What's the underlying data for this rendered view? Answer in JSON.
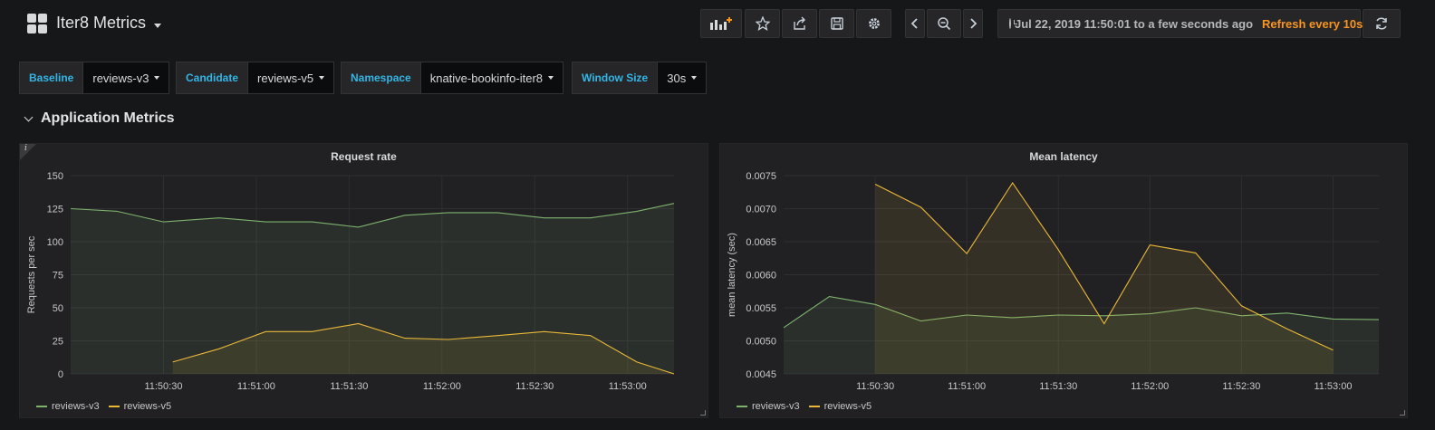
{
  "header": {
    "title": "Iter8 Metrics",
    "time_range": "Jul 22, 2019 11:50:01 to a few seconds ago",
    "refresh": "Refresh every 10s",
    "buttons": [
      "add-panel-icon",
      "star-icon",
      "share-icon",
      "save-icon",
      "settings-icon",
      "chevron-left-icon",
      "zoom-out-icon",
      "chevron-right-icon",
      "refresh-icon"
    ]
  },
  "variables": [
    {
      "label": "Baseline",
      "value": "reviews-v3"
    },
    {
      "label": "Candidate",
      "value": "reviews-v5"
    },
    {
      "label": "Namespace",
      "value": "knative-bookinfo-iter8"
    },
    {
      "label": "Window Size",
      "value": "30s"
    }
  ],
  "row": {
    "title": "Application Metrics"
  },
  "colors": {
    "green": "#7eb26d",
    "yellow": "#eab839",
    "accent": "#33b5e5",
    "refresh": "#f79520"
  },
  "chart_data": [
    {
      "type": "line",
      "title": "Request rate",
      "xlabel": "",
      "ylabel": "Requests per sec",
      "ylim": [
        0,
        150
      ],
      "yticks": [
        0,
        25,
        50,
        75,
        100,
        125,
        150
      ],
      "xlim": [
        "11:50:00",
        "11:53:15"
      ],
      "xticks": [
        "11:50:30",
        "11:51:00",
        "11:51:30",
        "11:52:00",
        "11:52:30",
        "11:53:00"
      ],
      "grid": true,
      "fill": true,
      "legend": "bottom-left",
      "series": [
        {
          "name": "reviews-v3",
          "color": "#7eb26d",
          "x": [
            "11:50:00",
            "11:50:15",
            "11:50:30",
            "11:50:48",
            "11:51:03",
            "11:51:18",
            "11:51:33",
            "11:51:48",
            "11:52:02",
            "11:52:18",
            "11:52:33",
            "11:52:48",
            "11:53:03",
            "11:53:15"
          ],
          "values": [
            125,
            123,
            115,
            118,
            115,
            115,
            111,
            120,
            122,
            122,
            118,
            118,
            123,
            129
          ]
        },
        {
          "name": "reviews-v5",
          "color": "#eab839",
          "x": [
            "11:50:33",
            "11:50:48",
            "11:51:03",
            "11:51:18",
            "11:51:33",
            "11:51:48",
            "11:52:02",
            "11:52:18",
            "11:52:33",
            "11:52:48",
            "11:53:03",
            "11:53:15"
          ],
          "values": [
            9,
            19,
            32,
            32,
            38,
            27,
            26,
            29,
            32,
            29,
            9,
            0
          ]
        }
      ]
    },
    {
      "type": "line",
      "title": "Mean latency",
      "xlabel": "",
      "ylabel": "mean latency (sec)",
      "ylim": [
        0.0045,
        0.0075
      ],
      "yticks": [
        "0.0045",
        "0.0050",
        "0.0055",
        "0.0060",
        "0.0065",
        "0.0070",
        "0.0075"
      ],
      "xlim": [
        "11:50:00",
        "11:53:15"
      ],
      "xticks": [
        "11:50:30",
        "11:51:00",
        "11:51:30",
        "11:52:00",
        "11:52:30",
        "11:53:00"
      ],
      "grid": true,
      "fill": true,
      "legend": "bottom-left",
      "series": [
        {
          "name": "reviews-v3",
          "color": "#7eb26d",
          "x": [
            "11:50:00",
            "11:50:15",
            "11:50:30",
            "11:50:45",
            "11:51:00",
            "11:51:15",
            "11:51:30",
            "11:51:45",
            "11:52:00",
            "11:52:15",
            "11:52:30",
            "11:52:45",
            "11:53:00",
            "11:53:15"
          ],
          "values": [
            0.0052,
            0.00567,
            0.00555,
            0.0053,
            0.00539,
            0.00535,
            0.00539,
            0.00538,
            0.00541,
            0.0055,
            0.00538,
            0.00542,
            0.00533,
            0.00532
          ]
        },
        {
          "name": "reviews-v5",
          "color": "#eab839",
          "x": [
            "11:50:30",
            "11:50:45",
            "11:51:00",
            "11:51:15",
            "11:51:30",
            "11:51:45",
            "11:52:00",
            "11:52:15",
            "11:52:30",
            "11:52:45",
            "11:53:00"
          ],
          "values": [
            0.00737,
            0.00702,
            0.00632,
            0.00739,
            0.00638,
            0.00526,
            0.00645,
            0.00633,
            0.00553,
            0.00518,
            0.00486
          ]
        }
      ]
    }
  ]
}
